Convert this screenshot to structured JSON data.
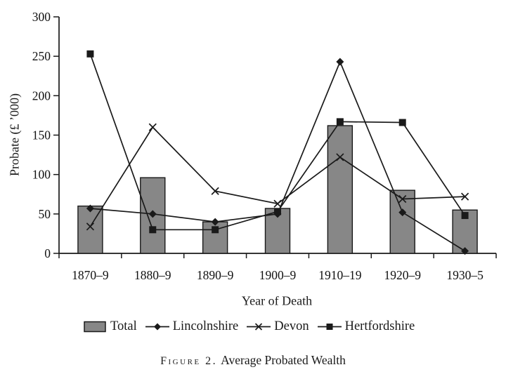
{
  "caption": {
    "label": "Figure 2.",
    "title": "Average Probated Wealth"
  },
  "chart_data": {
    "type": "combo-bar-line",
    "title": "Average Probated Wealth",
    "xlabel": "Year of Death",
    "ylabel": "Probate (£ ’000)",
    "categories": [
      "1870–9",
      "1880–9",
      "1890–9",
      "1900–9",
      "1910–19",
      "1920–9",
      "1930–5"
    ],
    "series": [
      {
        "name": "Total",
        "type": "bar",
        "marker": "bar",
        "values": [
          60,
          96,
          40,
          57,
          162,
          80,
          55
        ]
      },
      {
        "name": "Lincolnshire",
        "type": "line",
        "marker": "diamond",
        "values": [
          57,
          50,
          40,
          50,
          243,
          52,
          3
        ]
      },
      {
        "name": "Devon",
        "type": "line",
        "marker": "x",
        "values": [
          34,
          160,
          79,
          63,
          122,
          69,
          72
        ]
      },
      {
        "name": "Hertfordshire",
        "type": "line",
        "marker": "square",
        "values": [
          253,
          30,
          30,
          53,
          167,
          166,
          48
        ]
      }
    ],
    "ylim": [
      0,
      300
    ],
    "yticks": [
      0,
      50,
      100,
      150,
      200,
      250,
      300
    ],
    "grid": false,
    "legend_position": "bottom",
    "colors": {
      "bar_fill": "#878787",
      "ink": "#1a1a1a",
      "background": "#ffffff"
    }
  }
}
